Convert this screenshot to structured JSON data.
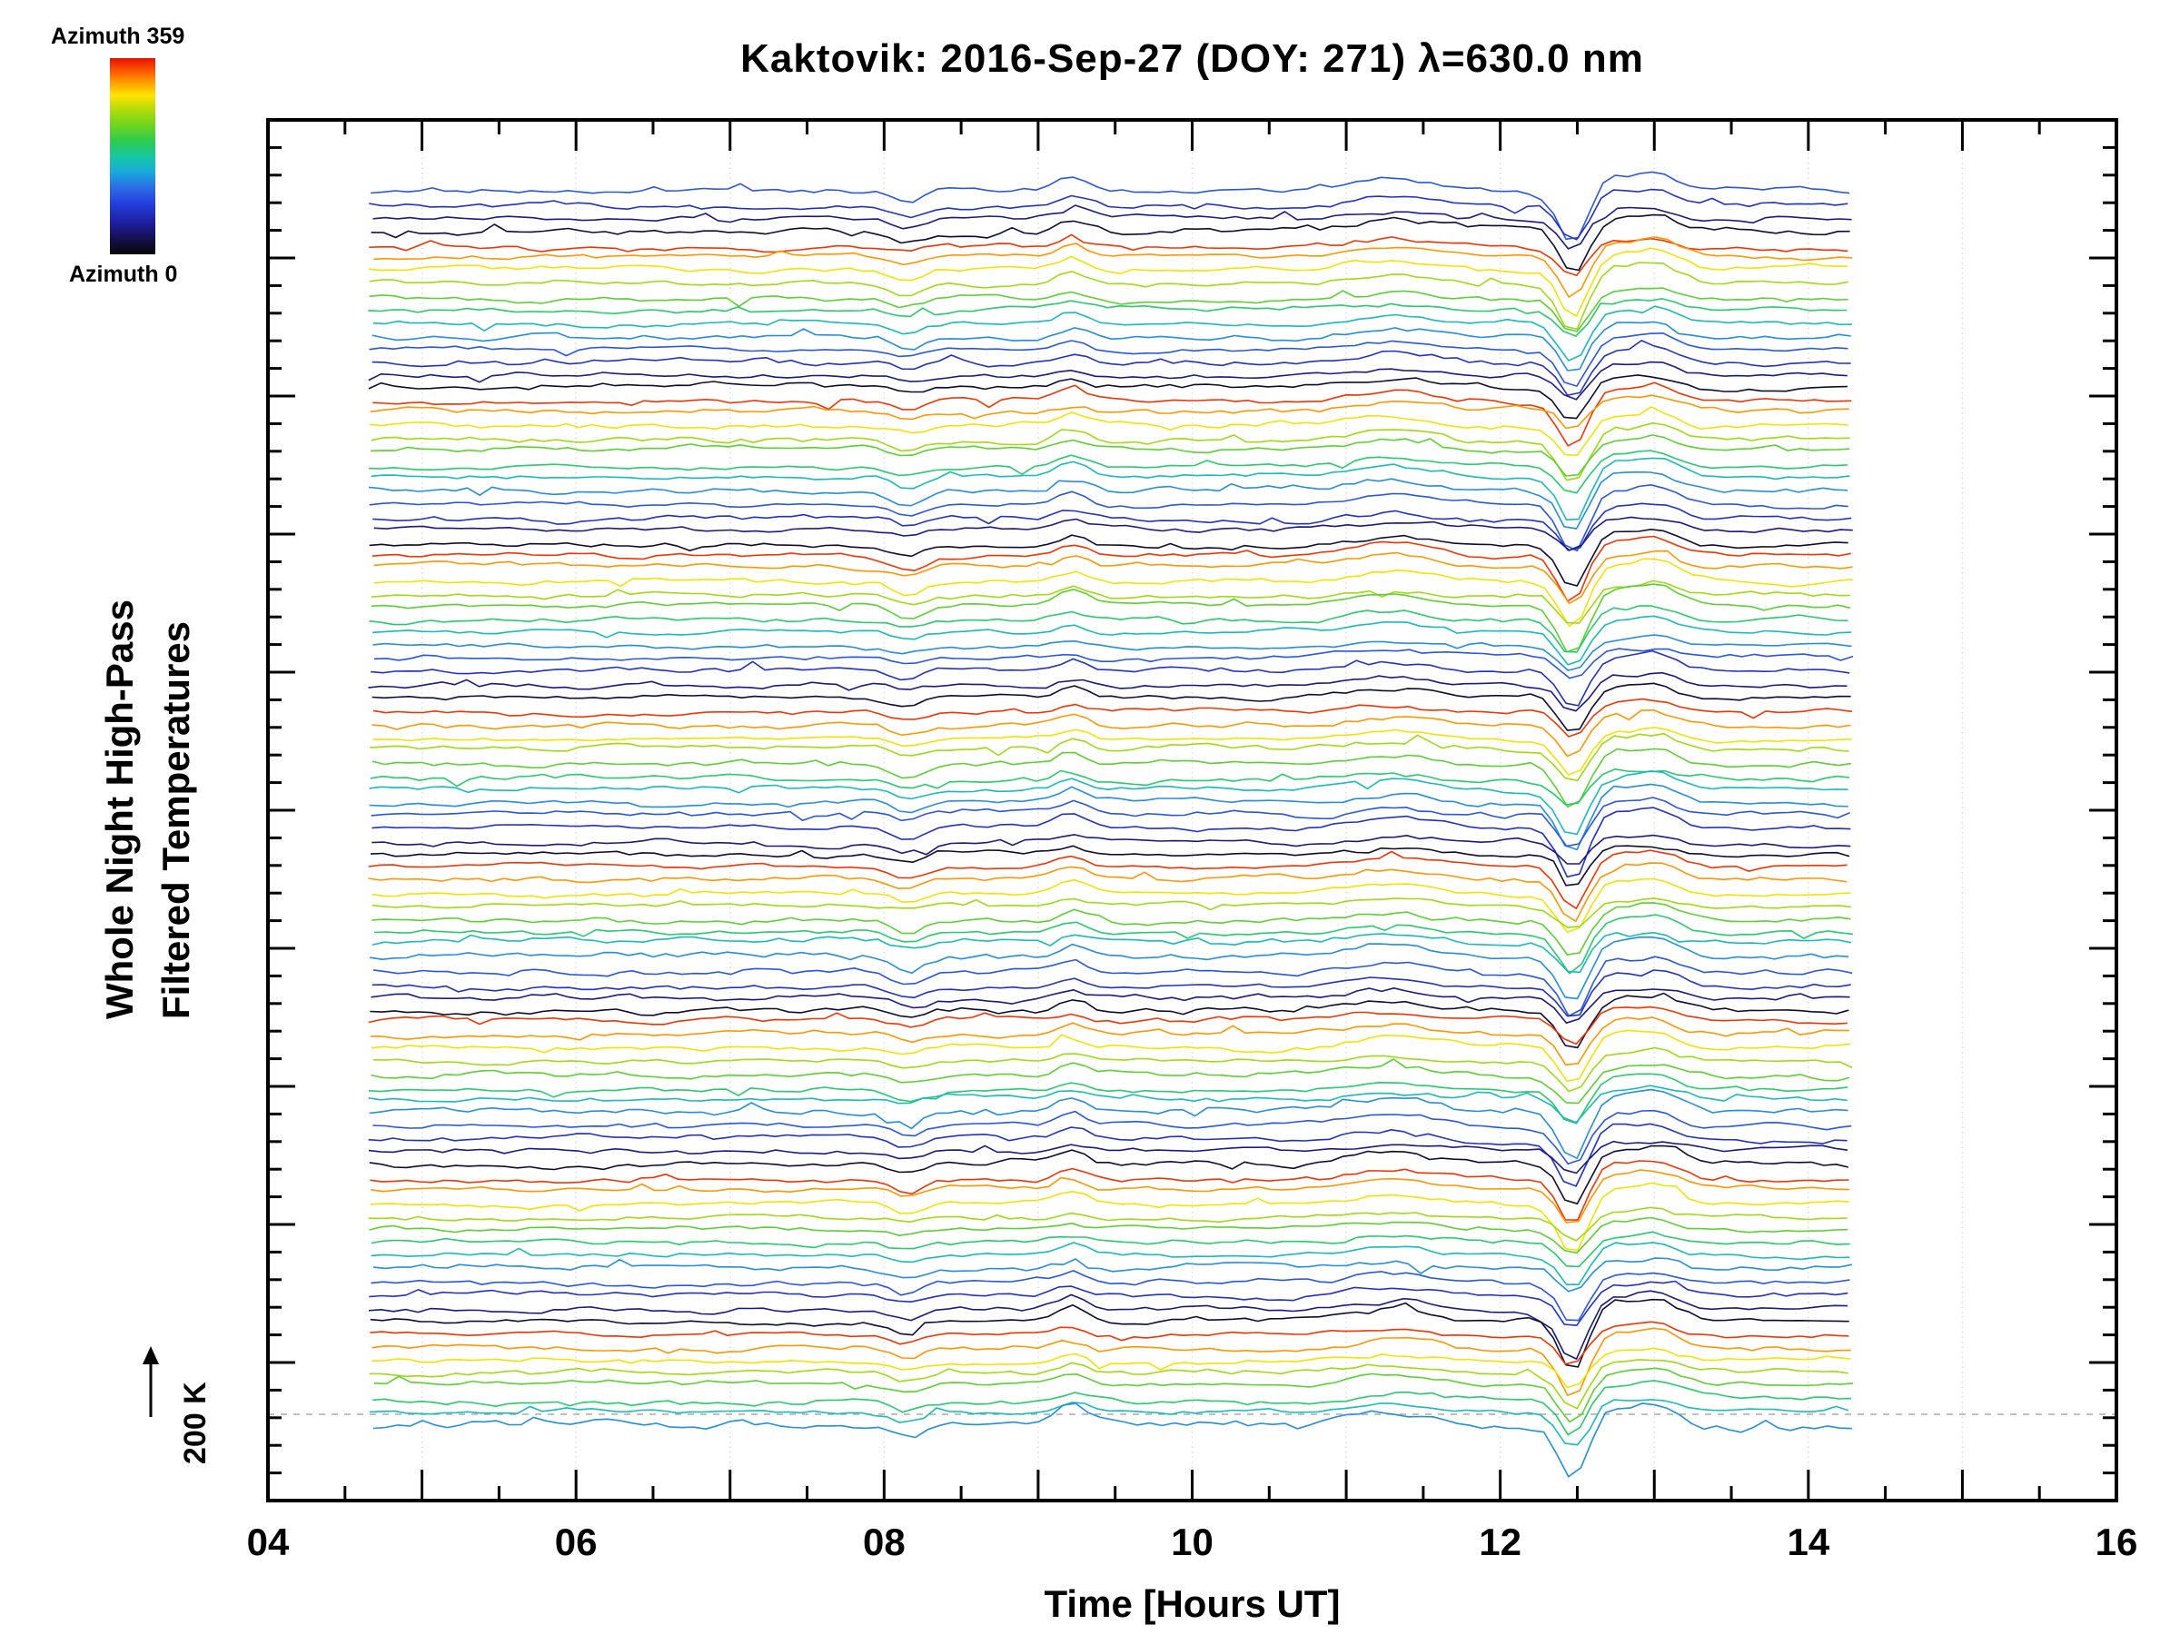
{
  "title": "Kaktovik: 2016-Sep-27 (DOY: 271) λ=630.0 nm",
  "legend": {
    "top_label": "Azimuth 359",
    "bottom_label": "Azimuth 0"
  },
  "scale_bar": {
    "label": "200 K",
    "kelvin": 200
  },
  "chart_data": {
    "type": "line",
    "title": "Kaktovik: 2016-Sep-27 (DOY: 271) λ=630.0 nm",
    "xlabel": "Time [Hours UT]",
    "ylabel_line1": "Whole Night High-Pass",
    "ylabel_line2": "Filtered Temperatures",
    "xlim": [
      4,
      16
    ],
    "x_tick_values": [
      4,
      6,
      8,
      10,
      12,
      14,
      16
    ],
    "x_tick_labels": [
      "04",
      "06",
      "08",
      "10",
      "12",
      "14",
      "16"
    ],
    "grid_hours": [
      5,
      6,
      7,
      8,
      9,
      10,
      11,
      12,
      13,
      14,
      15
    ],
    "x_data_range": [
      4.65,
      14.33
    ],
    "sample_step_hours": 0.08,
    "n_traces": 96,
    "traces_per_cycle": 12,
    "azimuth_min": 0,
    "azimuth_max": 359,
    "color_phase": 0.3,
    "scale_bar_K": 200,
    "grid": true,
    "legend_position": "top-left-colorbar",
    "dashed_baseline": true,
    "colormap_stops": [
      [
        0.0,
        "#060608"
      ],
      [
        0.08,
        "#15104f"
      ],
      [
        0.16,
        "#1e1e9e"
      ],
      [
        0.26,
        "#2440dd"
      ],
      [
        0.34,
        "#2b6ce4"
      ],
      [
        0.42,
        "#19aadd"
      ],
      [
        0.5,
        "#16c8a0"
      ],
      [
        0.58,
        "#2ecc4e"
      ],
      [
        0.66,
        "#71d41f"
      ],
      [
        0.74,
        "#b4dc0a"
      ],
      [
        0.81,
        "#ffe400"
      ],
      [
        0.88,
        "#ff9a00"
      ],
      [
        0.94,
        "#ff5000"
      ],
      [
        1.0,
        "#e41200"
      ]
    ],
    "features": [
      {
        "x": 12.47,
        "width": 0.09,
        "amp_K": -110
      },
      {
        "x": 12.72,
        "width": 0.1,
        "amp_K": 30
      },
      {
        "x": 13.0,
        "width": 0.14,
        "amp_K": 45
      },
      {
        "x": 9.22,
        "width": 0.09,
        "amp_K": 30
      },
      {
        "x": 8.15,
        "width": 0.1,
        "amp_K": -28
      },
      {
        "x": 11.3,
        "width": 0.25,
        "amp_K": 25
      }
    ],
    "noise_amp_K": 16,
    "seed": 271
  }
}
